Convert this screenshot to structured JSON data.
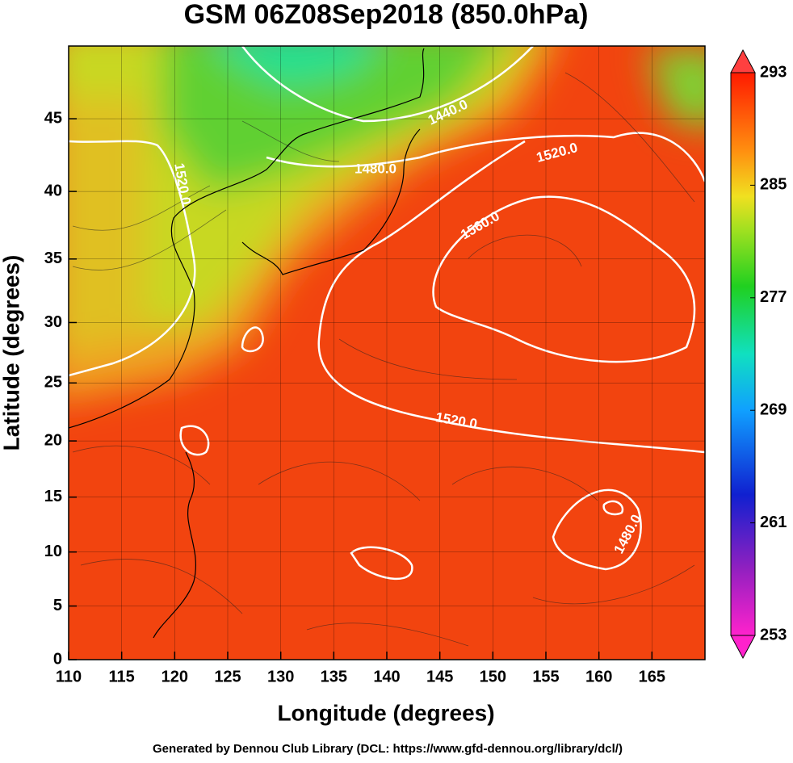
{
  "chart_data": {
    "type": "map",
    "title": "GSM 06Z08Sep2018 (850.0hPa)",
    "x_label": "Longitude (degrees)",
    "y_label": "Latitude  (degrees)",
    "footer": "Generated by Dennou Club Library (DCL: https://www.gfd-dennou.org/library/dcl/)",
    "projection": "mercator",
    "xlim": [
      110,
      170
    ],
    "xticks": [
      110,
      115,
      120,
      125,
      130,
      135,
      140,
      145,
      150,
      155,
      160,
      165
    ],
    "ylim": [
      0,
      49.6
    ],
    "yticks": [
      0,
      5,
      10,
      15,
      20,
      25,
      30,
      35,
      40,
      45
    ],
    "grid": true,
    "colorbar_lim": [
      253,
      293
    ],
    "colorbar_ticks": [
      253,
      261,
      269,
      277,
      285,
      293
    ],
    "contour_labels": [
      "1440.0",
      "1480.0",
      "1520.0",
      "1560.0",
      "1520.0",
      "1480.0",
      "1520.0"
    ]
  }
}
